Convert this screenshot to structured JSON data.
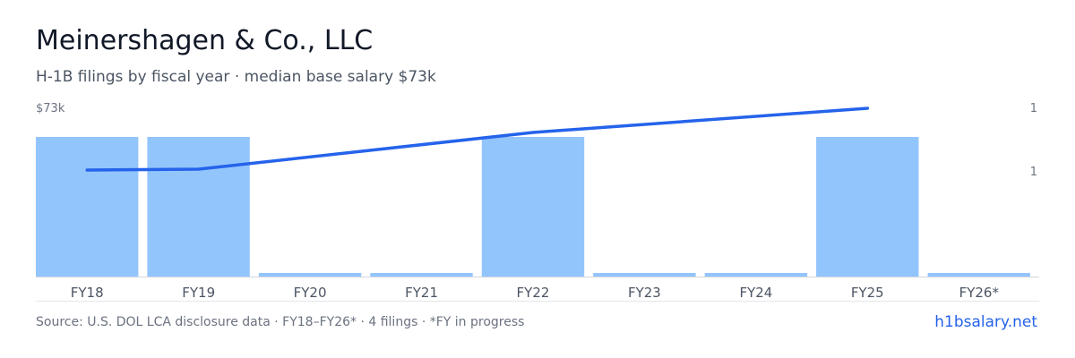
{
  "header": {
    "title": "Meinershagen & Co., LLC",
    "subtitle": "H-1B filings by fiscal year · median base salary $73k"
  },
  "footer": {
    "source": "Source: U.S. DOL LCA disclosure data · FY18–FY26* · 4 filings · *FY in progress",
    "brand": "h1bsalary.net"
  },
  "colors": {
    "bar": "#93c5fd",
    "line": "#2563eb",
    "axis": "#d1d5db",
    "tick": "#4b5563",
    "side_label": "#6b7280"
  },
  "chart_data": {
    "type": "bar",
    "categories": [
      "FY18",
      "FY19",
      "FY20",
      "FY21",
      "FY22",
      "FY23",
      "FY24",
      "FY25",
      "FY26*"
    ],
    "series": [
      {
        "type": "bar",
        "values": [
          1,
          1,
          0,
          0,
          1,
          0,
          0,
          1,
          0
        ]
      },
      {
        "type": "line",
        "values": [
          1,
          1,
          null,
          null,
          1,
          null,
          null,
          1,
          null
        ]
      }
    ],
    "left_axis_label": "$73k",
    "right_tick_labels": [
      "1",
      "1"
    ],
    "grid": false
  }
}
